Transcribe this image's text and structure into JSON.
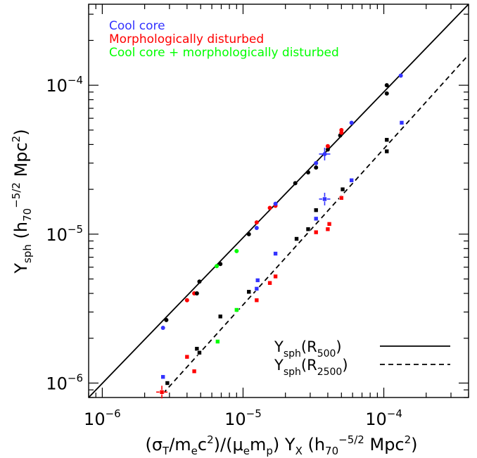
{
  "chart_data": {
    "type": "scatter",
    "scale": "log-log",
    "xlim": [
      8e-07,
      0.0004
    ],
    "ylim": [
      8e-07,
      0.00035
    ],
    "xlabel": {
      "pre": "(σ",
      "s1": "T",
      "m1": "/m",
      "s2": "e",
      "m2": "c",
      "p1": "2",
      "m3": ")/(μ",
      "s3": "e",
      "m4": "m",
      "s4": "p",
      "m5": ") Y",
      "s5": "X",
      "m6": "   (h",
      "s6": "70",
      "p2": "−5/2",
      "m7": " Mpc",
      "p3": "2",
      "m8": ")"
    },
    "ylabel": {
      "m1": "Y",
      "s1": "sph",
      "m2": "  (h",
      "s2": "70",
      "p1": "−5/2",
      "m3": " Mpc",
      "p2": "2",
      "m4": ")"
    },
    "x_ticks": [
      {
        "value": 1e-06,
        "base": "10",
        "exp": "−6"
      },
      {
        "value": 1e-05,
        "base": "10",
        "exp": "−5"
      },
      {
        "value": 0.0001,
        "base": "10",
        "exp": "−4"
      }
    ],
    "y_ticks": [
      {
        "value": 1e-06,
        "base": "10",
        "exp": "−6"
      },
      {
        "value": 1e-05,
        "base": "10",
        "exp": "−5"
      },
      {
        "value": 0.0001,
        "base": "10",
        "exp": "−4"
      }
    ],
    "category_legend": [
      {
        "label": "Cool core",
        "color": "#3333ff"
      },
      {
        "label": "Morphologically disturbed",
        "color": "#ff0000"
      },
      {
        "label": "Cool core + morphologically disturbed",
        "color": "#00ff00"
      }
    ],
    "line_legend": [
      {
        "main": "Y",
        "sub": "sph",
        "paren_open": "(R",
        "rsub": "500",
        "paren_close": ")",
        "style": "solid"
      },
      {
        "main": "Y",
        "sub": "sph",
        "paren_open": "(R",
        "rsub": "2500",
        "paren_close": ")",
        "style": "dashed"
      }
    ],
    "lines": [
      {
        "name": "R500",
        "style": "solid",
        "points": [
          [
            8e-07,
            8e-07
          ],
          [
            0.0004,
            0.00035
          ]
        ]
      },
      {
        "name": "R2500",
        "style": "dashed",
        "points": [
          [
            2.7e-06,
            8.5e-07
          ],
          [
            0.0004,
            0.00016
          ]
        ]
      }
    ],
    "colors": {
      "black": "#000000",
      "blue": "#3333ff",
      "red": "#ff0000",
      "green": "#00ff00"
    },
    "series": [
      {
        "name": "R500",
        "marker": "circle",
        "points": [
          {
            "x": 2.7e-06,
            "y": 2.35e-06,
            "c": "blue"
          },
          {
            "x": 2.85e-06,
            "y": 2.65e-06,
            "c": "black"
          },
          {
            "x": 4e-06,
            "y": 3.6e-06,
            "c": "red"
          },
          {
            "x": 4.5e-06,
            "y": 4e-06,
            "c": "red"
          },
          {
            "x": 4.7e-06,
            "y": 4e-06,
            "c": "black"
          },
          {
            "x": 4.9e-06,
            "y": 4.8e-06,
            "c": "black"
          },
          {
            "x": 6.5e-06,
            "y": 6.1e-06,
            "c": "green"
          },
          {
            "x": 6.9e-06,
            "y": 6.3e-06,
            "c": "black"
          },
          {
            "x": 9e-06,
            "y": 7.7e-06,
            "c": "green"
          },
          {
            "x": 1.1e-05,
            "y": 1e-05,
            "c": "black"
          },
          {
            "x": 1.25e-05,
            "y": 1.1e-05,
            "c": "blue"
          },
          {
            "x": 1.25e-05,
            "y": 1.2e-05,
            "c": "red"
          },
          {
            "x": 1.55e-05,
            "y": 1.5e-05,
            "c": "red"
          },
          {
            "x": 1.7e-05,
            "y": 1.55e-05,
            "c": "red"
          },
          {
            "x": 1.7e-05,
            "y": 1.6e-05,
            "c": "blue"
          },
          {
            "x": 2.35e-05,
            "y": 2.2e-05,
            "c": "black"
          },
          {
            "x": 2.9e-05,
            "y": 2.6e-05,
            "c": "black"
          },
          {
            "x": 3.3e-05,
            "y": 2.8e-05,
            "c": "black"
          },
          {
            "x": 3.3e-05,
            "y": 3e-05,
            "c": "blue"
          },
          {
            "x": 3.8e-05,
            "y": 3.45e-05,
            "c": "blue",
            "err": true
          },
          {
            "x": 4e-05,
            "y": 3.7e-05,
            "c": "black"
          },
          {
            "x": 4e-05,
            "y": 3.9e-05,
            "c": "red"
          },
          {
            "x": 4.9e-05,
            "y": 4.6e-05,
            "c": "black"
          },
          {
            "x": 5e-05,
            "y": 4.8e-05,
            "c": "red"
          },
          {
            "x": 5e-05,
            "y": 5e-05,
            "c": "red"
          },
          {
            "x": 5.9e-05,
            "y": 5.6e-05,
            "c": "blue"
          },
          {
            "x": 0.000105,
            "y": 8.8e-05,
            "c": "black"
          },
          {
            "x": 0.000105,
            "y": 0.0001,
            "c": "black"
          },
          {
            "x": 0.000132,
            "y": 0.000116,
            "c": "blue"
          }
        ]
      },
      {
        "name": "R2500",
        "marker": "square",
        "points": [
          {
            "x": 2.65e-06,
            "y": 8.7e-07,
            "c": "red",
            "err": true
          },
          {
            "x": 2.7e-06,
            "y": 1.1e-06,
            "c": "blue"
          },
          {
            "x": 2.9e-06,
            "y": 1e-06,
            "c": "black"
          },
          {
            "x": 4e-06,
            "y": 1.5e-06,
            "c": "red"
          },
          {
            "x": 4.5e-06,
            "y": 1.2e-06,
            "c": "red"
          },
          {
            "x": 4.7e-06,
            "y": 1.7e-06,
            "c": "black"
          },
          {
            "x": 4.9e-06,
            "y": 1.6e-06,
            "c": "black"
          },
          {
            "x": 6.6e-06,
            "y": 1.9e-06,
            "c": "green"
          },
          {
            "x": 6.9e-06,
            "y": 2.8e-06,
            "c": "black"
          },
          {
            "x": 9e-06,
            "y": 3.1e-06,
            "c": "green"
          },
          {
            "x": 1.1e-05,
            "y": 4.1e-06,
            "c": "black"
          },
          {
            "x": 1.25e-05,
            "y": 3.6e-06,
            "c": "red"
          },
          {
            "x": 1.25e-05,
            "y": 4.3e-06,
            "c": "blue"
          },
          {
            "x": 1.27e-05,
            "y": 4.9e-06,
            "c": "blue"
          },
          {
            "x": 1.55e-05,
            "y": 4.7e-06,
            "c": "red"
          },
          {
            "x": 1.7e-05,
            "y": 5.2e-06,
            "c": "red"
          },
          {
            "x": 1.7e-05,
            "y": 7.4e-06,
            "c": "blue"
          },
          {
            "x": 2.4e-05,
            "y": 9.3e-06,
            "c": "black"
          },
          {
            "x": 2.9e-05,
            "y": 1.08e-05,
            "c": "black"
          },
          {
            "x": 3.3e-05,
            "y": 1.03e-05,
            "c": "red"
          },
          {
            "x": 3.3e-05,
            "y": 1.27e-05,
            "c": "blue"
          },
          {
            "x": 3.3e-05,
            "y": 1.45e-05,
            "c": "black"
          },
          {
            "x": 3.8e-05,
            "y": 1.72e-05,
            "c": "blue",
            "err": true
          },
          {
            "x": 4e-05,
            "y": 1.08e-05,
            "c": "red"
          },
          {
            "x": 4.1e-05,
            "y": 1.17e-05,
            "c": "red"
          },
          {
            "x": 5e-05,
            "y": 1.75e-05,
            "c": "red"
          },
          {
            "x": 5.1e-05,
            "y": 2e-05,
            "c": "black"
          },
          {
            "x": 5.9e-05,
            "y": 2.3e-05,
            "c": "blue"
          },
          {
            "x": 0.000105,
            "y": 3.6e-05,
            "c": "black"
          },
          {
            "x": 0.000105,
            "y": 4.3e-05,
            "c": "black"
          },
          {
            "x": 0.000134,
            "y": 5.6e-05,
            "c": "blue"
          }
        ]
      }
    ]
  }
}
